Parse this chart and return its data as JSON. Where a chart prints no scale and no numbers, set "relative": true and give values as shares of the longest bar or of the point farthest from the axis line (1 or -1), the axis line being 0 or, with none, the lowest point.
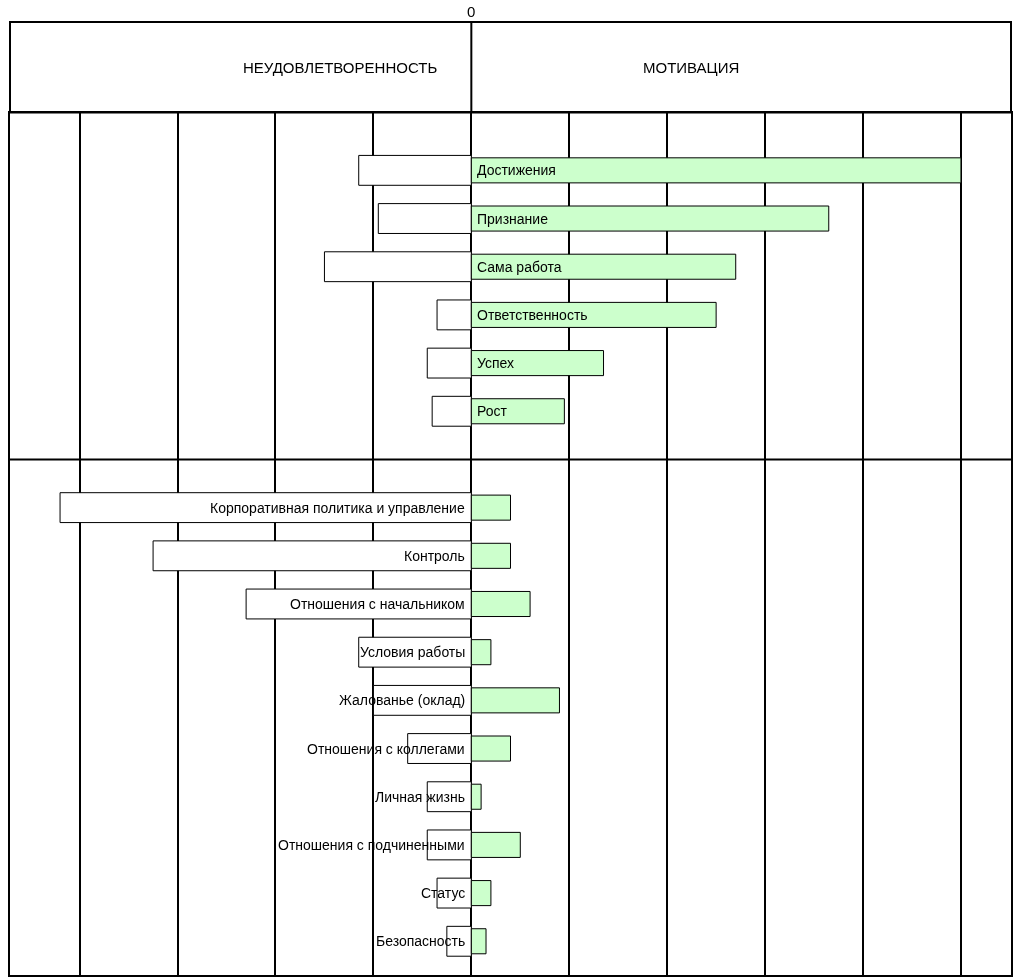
{
  "chart_data": {
    "type": "bar",
    "orientation": "horizontal",
    "relative": true,
    "grid": "x",
    "tick_labels": false,
    "annotations": [
      "0",
      "НЕУДОВЛЕТВОРЕННОСТЬ",
      "МОТИВАЦИЯ"
    ],
    "categories": [
      "Достижения",
      "Признание",
      "Сама работа",
      "Ответственность",
      "Успех",
      "Рост",
      null,
      "Корпоративная политика и управление",
      "Контроль",
      "Отношения с начальником",
      "Условия работы",
      "Жалованье (оклад)",
      "Отношения с коллегами",
      "Личная жизнь",
      "Отношения с подчиненными",
      "Статус",
      "Безопасность"
    ],
    "series": [
      {
        "color": "#ffffff",
        "values": [
          -0.23,
          -0.19,
          -0.3,
          -0.07,
          -0.09,
          -0.08,
          null,
          -0.84,
          -0.65,
          -0.46,
          -0.23,
          -0.2,
          -0.13,
          -0.09,
          -0.09,
          -0.07,
          -0.05
        ]
      },
      {
        "color": "#ccffcc",
        "values": [
          1,
          0.73,
          0.54,
          0.5,
          0.27,
          0.19,
          null,
          0.08,
          0.08,
          0.12,
          0.04,
          0.18,
          0.08,
          0.02,
          0.1,
          0.04,
          0.03
        ]
      }
    ]
  }
}
